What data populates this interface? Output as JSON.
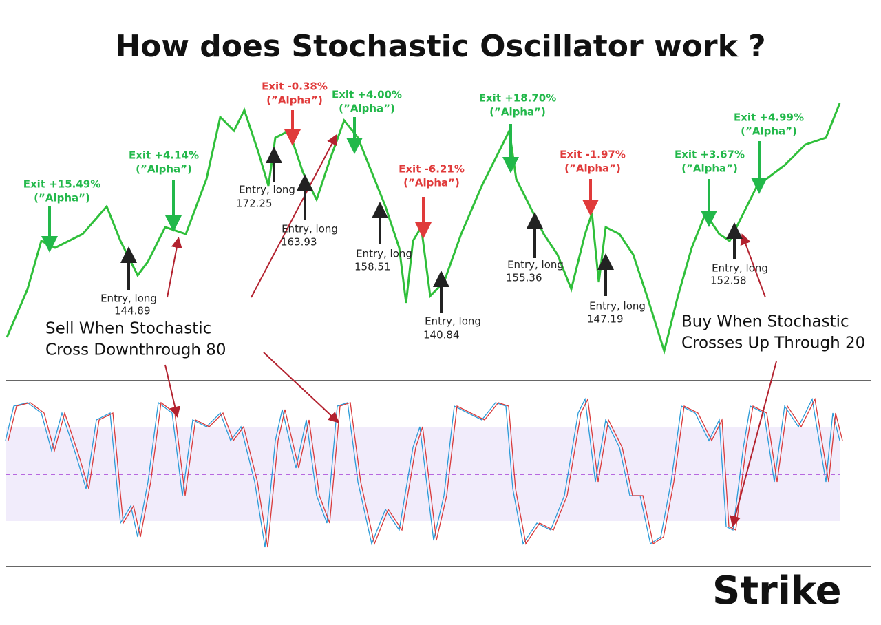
{
  "title": "How does Stochastic Oscillator work ?",
  "exits": [
    {
      "label": "Exit +15.49%",
      "note": "(”Alpha”)"
    },
    {
      "label": "Exit +4.14%",
      "note": "(”Alpha”)"
    },
    {
      "label": "Exit -0.38%",
      "note": "(”Alpha”)"
    },
    {
      "label": "Exit +4.00%",
      "note": "(”Alpha”)"
    },
    {
      "label": "Exit -6.21%",
      "note": "(”Alpha”)"
    },
    {
      "label": "Exit +18.70%",
      "note": "(”Alpha”)"
    },
    {
      "label": "Exit -1.97%",
      "note": "(”Alpha”)"
    },
    {
      "label": "Exit +3.67%",
      "note": "(”Alpha”)"
    },
    {
      "label": "Exit +4.99%",
      "note": "(”Alpha”)"
    }
  ],
  "entries": [
    {
      "label": "Entry, long",
      "price": 144.89
    },
    {
      "label": "Entry, long",
      "price": 172.25
    },
    {
      "label": "Entry, long",
      "price": 163.93
    },
    {
      "label": "Entry, long",
      "price": 158.51
    },
    {
      "label": "Entry, long",
      "price": 140.84
    },
    {
      "label": "Entry, long",
      "price": 155.36
    },
    {
      "label": "Entry, long",
      "price": 147.19
    },
    {
      "label": "Entry, long",
      "price": 152.58
    }
  ],
  "callouts": [
    {
      "lines": [
        "Sell When Stochastic",
        "Cross Downthrough 80"
      ]
    },
    {
      "lines": [
        "Buy When Stochastic",
        "Crosses Up Through 20"
      ]
    }
  ],
  "logo": "Strike"
}
